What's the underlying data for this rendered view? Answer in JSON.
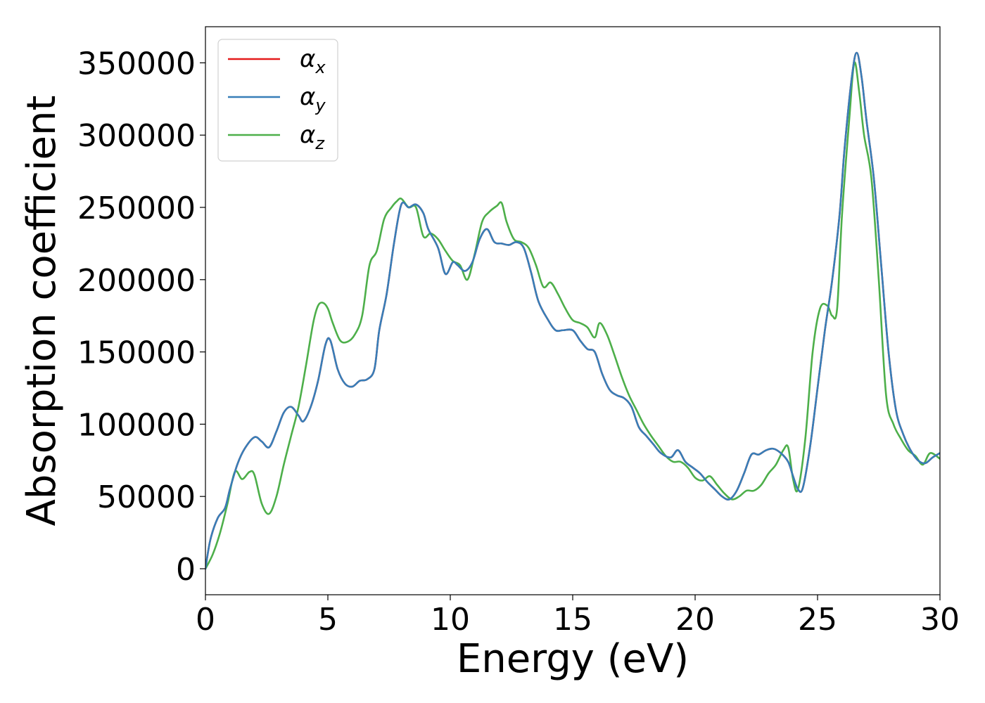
{
  "chart_data": {
    "type": "line",
    "title": "",
    "xlabel": "Energy (eV)",
    "ylabel": "Absorption coefficient",
    "xlim": [
      0,
      30
    ],
    "ylim": [
      -18000,
      375000
    ],
    "x_ticks": [
      0,
      5,
      10,
      15,
      20,
      25,
      30
    ],
    "x_tick_labels": [
      "0",
      "5",
      "10",
      "15",
      "20",
      "25",
      "30"
    ],
    "y_ticks": [
      0,
      50000,
      100000,
      150000,
      200000,
      250000,
      300000,
      350000
    ],
    "y_tick_labels": [
      "0",
      "50000",
      "100000",
      "150000",
      "200000",
      "250000",
      "300000",
      "350000"
    ],
    "legend_position": "upper-left",
    "series": [
      {
        "name": "αx",
        "symbol": "α",
        "subscript": "x",
        "color": "#e41a1c",
        "x": [
          0,
          0.2,
          0.5,
          0.8,
          1.0,
          1.3,
          1.6,
          2.0,
          2.3,
          2.6,
          2.9,
          3.2,
          3.5,
          3.8,
          4.0,
          4.3,
          4.6,
          4.9,
          5.1,
          5.4,
          5.7,
          6.0,
          6.3,
          6.6,
          6.9,
          7.1,
          7.4,
          7.7,
          8.0,
          8.3,
          8.6,
          8.9,
          9.1,
          9.5,
          9.8,
          10.1,
          10.3,
          10.6,
          10.9,
          11.2,
          11.5,
          11.8,
          12.1,
          12.4,
          12.7,
          13.0,
          13.3,
          13.6,
          14.0,
          14.3,
          14.6,
          15.0,
          15.3,
          15.6,
          15.9,
          16.2,
          16.5,
          16.8,
          17.1,
          17.4,
          17.7,
          18.0,
          18.3,
          18.6,
          19.0,
          19.3,
          19.6,
          19.9,
          20.2,
          20.5,
          20.8,
          21.1,
          21.4,
          21.7,
          22.0,
          22.3,
          22.6,
          22.9,
          23.2,
          23.5,
          23.8,
          24.0,
          24.2,
          24.4,
          24.7,
          25.0,
          25.3,
          25.6,
          25.9,
          26.1,
          26.4,
          26.6,
          26.8,
          27.0,
          27.3,
          27.6,
          27.9,
          28.2,
          28.5,
          28.8,
          29.1,
          29.4,
          29.7,
          30.0
        ],
        "values": [
          0,
          20000,
          35000,
          42000,
          55000,
          72000,
          83000,
          91000,
          88000,
          84000,
          95000,
          108000,
          112000,
          106000,
          102000,
          112000,
          130000,
          155000,
          158000,
          138000,
          128000,
          126000,
          130000,
          131000,
          138000,
          165000,
          190000,
          225000,
          252000,
          250000,
          252000,
          246000,
          235000,
          222000,
          204000,
          212000,
          210000,
          206000,
          212000,
          228000,
          235000,
          226000,
          225000,
          224000,
          226000,
          222000,
          205000,
          185000,
          172000,
          165000,
          165000,
          165000,
          158000,
          152000,
          150000,
          135000,
          124000,
          120000,
          118000,
          112000,
          98000,
          92000,
          86000,
          80000,
          77000,
          82000,
          74000,
          70000,
          66000,
          60000,
          55000,
          50000,
          48000,
          54000,
          66000,
          79000,
          79000,
          82000,
          83000,
          80000,
          74000,
          64000,
          55000,
          56000,
          85000,
          125000,
          165000,
          200000,
          245000,
          290000,
          340000,
          357000,
          340000,
          310000,
          270000,
          210000,
          150000,
          110000,
          93000,
          82000,
          75000,
          73000,
          77000,
          80000
        ]
      },
      {
        "name": "αy",
        "symbol": "α",
        "subscript": "y",
        "color": "#377eb8",
        "x": [
          0,
          0.2,
          0.5,
          0.8,
          1.0,
          1.3,
          1.6,
          2.0,
          2.3,
          2.6,
          2.9,
          3.2,
          3.5,
          3.8,
          4.0,
          4.3,
          4.6,
          4.9,
          5.1,
          5.4,
          5.7,
          6.0,
          6.3,
          6.6,
          6.9,
          7.1,
          7.4,
          7.7,
          8.0,
          8.3,
          8.6,
          8.9,
          9.1,
          9.5,
          9.8,
          10.1,
          10.3,
          10.6,
          10.9,
          11.2,
          11.5,
          11.8,
          12.1,
          12.4,
          12.7,
          13.0,
          13.3,
          13.6,
          14.0,
          14.3,
          14.6,
          15.0,
          15.3,
          15.6,
          15.9,
          16.2,
          16.5,
          16.8,
          17.1,
          17.4,
          17.7,
          18.0,
          18.3,
          18.6,
          19.0,
          19.3,
          19.6,
          19.9,
          20.2,
          20.5,
          20.8,
          21.1,
          21.4,
          21.7,
          22.0,
          22.3,
          22.6,
          22.9,
          23.2,
          23.5,
          23.8,
          24.0,
          24.2,
          24.4,
          24.7,
          25.0,
          25.3,
          25.6,
          25.9,
          26.1,
          26.4,
          26.6,
          26.8,
          27.0,
          27.3,
          27.6,
          27.9,
          28.2,
          28.5,
          28.8,
          29.1,
          29.4,
          29.7,
          30.0
        ],
        "values": [
          0,
          20000,
          35000,
          42000,
          55000,
          72000,
          83000,
          91000,
          88000,
          84000,
          95000,
          108000,
          112000,
          106000,
          102000,
          112000,
          130000,
          155000,
          158000,
          138000,
          128000,
          126000,
          130000,
          131000,
          138000,
          165000,
          190000,
          225000,
          252000,
          250000,
          252000,
          246000,
          235000,
          222000,
          204000,
          212000,
          210000,
          206000,
          212000,
          228000,
          235000,
          226000,
          225000,
          224000,
          226000,
          222000,
          205000,
          185000,
          172000,
          165000,
          165000,
          165000,
          158000,
          152000,
          150000,
          135000,
          124000,
          120000,
          118000,
          112000,
          98000,
          92000,
          86000,
          80000,
          77000,
          82000,
          74000,
          70000,
          66000,
          60000,
          55000,
          50000,
          48000,
          54000,
          66000,
          79000,
          79000,
          82000,
          83000,
          80000,
          74000,
          64000,
          55000,
          56000,
          85000,
          125000,
          165000,
          200000,
          245000,
          290000,
          340000,
          357000,
          340000,
          310000,
          270000,
          210000,
          150000,
          110000,
          93000,
          82000,
          75000,
          73000,
          77000,
          80000
        ]
      },
      {
        "name": "αz",
        "symbol": "α",
        "subscript": "z",
        "color": "#4daf4a",
        "x": [
          0,
          0.3,
          0.6,
          0.9,
          1.2,
          1.5,
          1.8,
          2.0,
          2.3,
          2.6,
          2.9,
          3.2,
          3.5,
          3.8,
          4.1,
          4.4,
          4.6,
          4.8,
          5.0,
          5.2,
          5.5,
          5.8,
          6.1,
          6.4,
          6.7,
          7.0,
          7.3,
          7.6,
          7.8,
          8.0,
          8.3,
          8.6,
          8.9,
          9.2,
          9.5,
          9.8,
          10.1,
          10.4,
          10.7,
          11.0,
          11.3,
          11.6,
          11.9,
          12.1,
          12.3,
          12.6,
          12.9,
          13.2,
          13.5,
          13.8,
          14.1,
          14.4,
          14.7,
          15.0,
          15.3,
          15.6,
          15.9,
          16.1,
          16.4,
          16.7,
          17.0,
          17.3,
          17.6,
          17.9,
          18.2,
          18.5,
          18.8,
          19.1,
          19.4,
          19.7,
          20.0,
          20.3,
          20.6,
          20.9,
          21.2,
          21.5,
          21.8,
          22.1,
          22.4,
          22.7,
          23.0,
          23.3,
          23.6,
          23.8,
          24.0,
          24.2,
          24.5,
          24.8,
          25.1,
          25.4,
          25.6,
          25.8,
          26.0,
          26.3,
          26.5,
          26.7,
          26.9,
          27.2,
          27.5,
          27.8,
          28.1,
          28.4,
          28.7,
          29.0,
          29.3,
          29.6,
          30.0
        ],
        "values": [
          0,
          10000,
          25000,
          45000,
          67000,
          62000,
          67000,
          65000,
          45000,
          38000,
          50000,
          72000,
          92000,
          112000,
          140000,
          170000,
          182000,
          184000,
          180000,
          170000,
          158000,
          157000,
          162000,
          175000,
          210000,
          220000,
          242000,
          250000,
          254000,
          256000,
          250000,
          250000,
          230000,
          232000,
          228000,
          220000,
          213000,
          210000,
          200000,
          218000,
          240000,
          247000,
          251000,
          253000,
          240000,
          228000,
          226000,
          222000,
          210000,
          195000,
          198000,
          190000,
          180000,
          172000,
          170000,
          167000,
          160000,
          170000,
          162000,
          148000,
          133000,
          120000,
          110000,
          100000,
          92000,
          85000,
          78000,
          74000,
          74000,
          70000,
          63000,
          61000,
          64000,
          58000,
          52000,
          48000,
          50000,
          54000,
          54000,
          58000,
          66000,
          72000,
          82000,
          84000,
          62000,
          55000,
          90000,
          150000,
          180000,
          182000,
          175000,
          180000,
          245000,
          312000,
          350000,
          330000,
          300000,
          270000,
          200000,
          120000,
          100000,
          90000,
          82000,
          78000,
          72000,
          80000,
          76000
        ]
      }
    ]
  }
}
